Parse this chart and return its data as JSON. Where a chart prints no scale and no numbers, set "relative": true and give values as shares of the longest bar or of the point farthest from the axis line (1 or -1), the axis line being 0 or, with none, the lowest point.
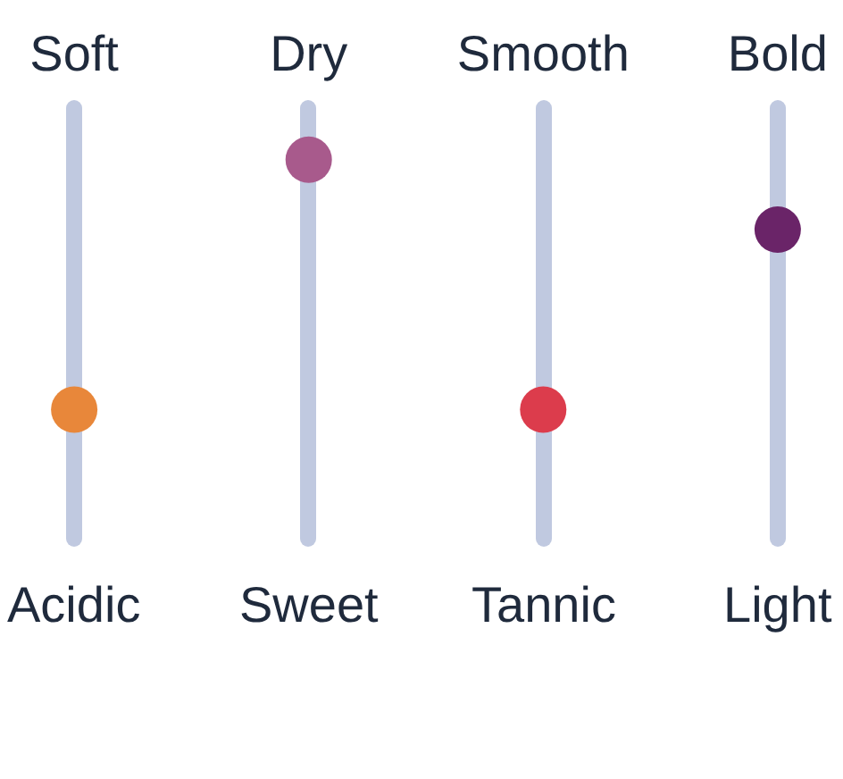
{
  "chart_data": {
    "type": "scatter",
    "relative": true,
    "categories": [
      "Soft",
      "Dry",
      "Smooth",
      "Bold"
    ],
    "series": [
      {
        "colors": [
          "#e8873a",
          "#a85a8c",
          "#dc3c4c",
          "#6a2468"
        ],
        "values": [
          0,
          1,
          0,
          0.72
        ]
      }
    ],
    "annotations": [
      "Acidic",
      "Sweet",
      "Tannic",
      "Light"
    ],
    "marker": "circle",
    "grid": false
  }
}
